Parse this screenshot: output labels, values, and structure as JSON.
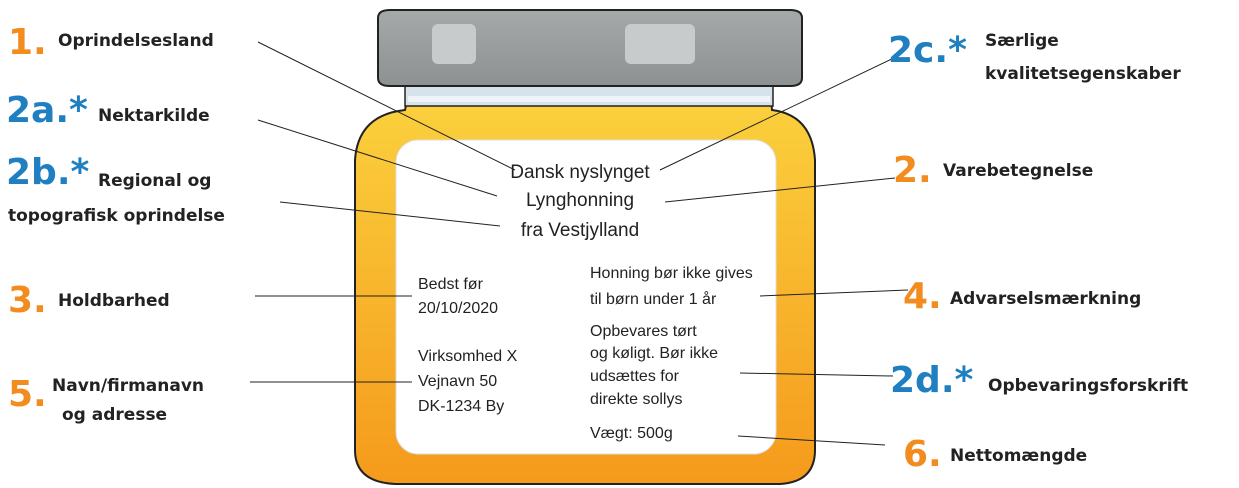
{
  "label": {
    "product_lines": [
      "Dansk nyslynget",
      "Lynghonning",
      "fra Vestjylland"
    ],
    "best_before": [
      "Bedst før",
      "20/10/2020"
    ],
    "company": [
      "Virksomhed X",
      "Vejnavn 50",
      "DK-1234 By"
    ],
    "warning": [
      "Honning bør ikke gives",
      "til børn under 1 år"
    ],
    "storage": [
      "Opbevares tørt",
      "og køligt. Bør ikke",
      "udsættes for",
      "direkte sollys"
    ],
    "weight": "Vægt: 500g"
  },
  "callouts": [
    {
      "number": "1.",
      "lines": [
        "Oprindelsesland"
      ]
    },
    {
      "number": "2a.*",
      "lines": [
        "Nektarkilde"
      ]
    },
    {
      "number": "2b.*",
      "lines": [
        "Regional og",
        "topografisk oprindelse"
      ]
    },
    {
      "number": "3.",
      "lines": [
        "Holdbarhed"
      ]
    },
    {
      "number": "5.",
      "lines": [
        "Navn/firmanavn",
        "og adresse"
      ]
    },
    {
      "number": "2c.*",
      "lines": [
        "Særlige",
        "kvalitetsegenskaber"
      ]
    },
    {
      "number": "2.",
      "lines": [
        "Varebetegnelse"
      ]
    },
    {
      "number": "4.",
      "lines": [
        "Advarselsmærkning"
      ]
    },
    {
      "number": "2d.*",
      "lines": [
        "Opbevaringsforskrift"
      ]
    },
    {
      "number": "6.",
      "lines": [
        "Nettomængde"
      ]
    }
  ]
}
